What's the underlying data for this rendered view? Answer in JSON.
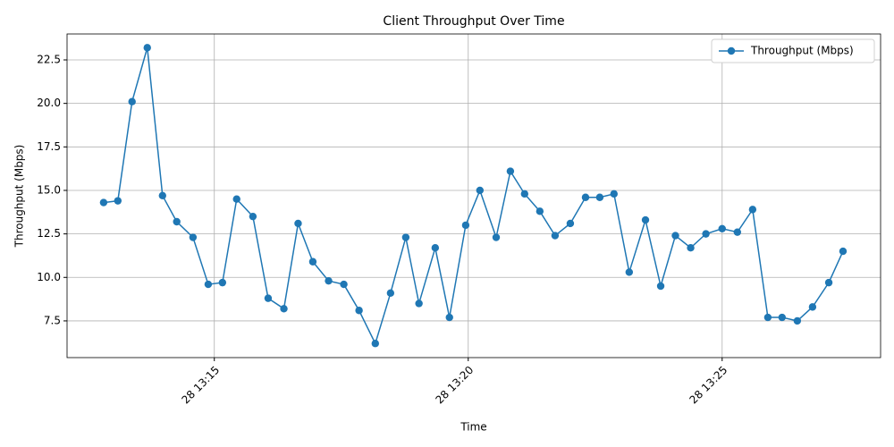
{
  "chart_data": {
    "type": "line",
    "title": "Client Throughput Over Time",
    "x_label": "Time",
    "y_label": "Throughput (Mbps)",
    "x": [
      12.82,
      13.1,
      13.38,
      13.68,
      13.98,
      14.26,
      14.58,
      14.88,
      15.16,
      15.44,
      15.76,
      16.06,
      16.37,
      16.65,
      16.94,
      17.25,
      17.55,
      17.85,
      18.17,
      18.47,
      18.77,
      19.03,
      19.35,
      19.63,
      19.95,
      20.23,
      20.55,
      20.83,
      21.11,
      21.41,
      21.71,
      22.01,
      22.31,
      22.59,
      22.87,
      23.17,
      23.49,
      23.79,
      24.08,
      24.38,
      24.68,
      25.0,
      25.3,
      25.6,
      25.9,
      26.18,
      26.48,
      26.78,
      27.1,
      27.38
    ],
    "series": [
      {
        "name": "Throughput (Mbps)",
        "color": "#1f77b4",
        "values": [
          14.3,
          14.4,
          20.1,
          23.2,
          14.7,
          13.2,
          12.3,
          9.6,
          9.7,
          14.5,
          13.5,
          8.8,
          8.2,
          13.1,
          10.9,
          9.8,
          9.6,
          8.1,
          6.2,
          9.1,
          12.3,
          8.5,
          11.7,
          7.7,
          13.0,
          15.0,
          12.3,
          16.1,
          14.8,
          13.8,
          12.4,
          13.1,
          14.6,
          14.6,
          14.8,
          10.3,
          13.3,
          9.5,
          12.4,
          11.7,
          12.5,
          12.8,
          12.6,
          13.9,
          7.7,
          7.7,
          7.5,
          8.3,
          9.7,
          11.5
        ]
      }
    ],
    "xlim": [
      12.1,
      28.12
    ],
    "xticks": [
      {
        "value": 15,
        "label": "28 13:15"
      },
      {
        "value": 20,
        "label": "28 13:20"
      },
      {
        "value": 25,
        "label": "28 13:25"
      }
    ],
    "ylim": [
      5.39,
      23.99
    ],
    "yticks": [
      7.5,
      {
        "value": 10,
        "label": "10.0"
      },
      12.5,
      {
        "value": 15,
        "label": "15.0"
      },
      17.5,
      {
        "value": 20,
        "label": "20.0"
      },
      22.5
    ],
    "grid": true,
    "legend": "upper right"
  }
}
